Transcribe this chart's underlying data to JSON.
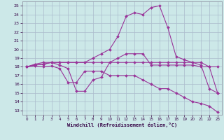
{
  "background_color": "#cce8e8",
  "grid_color": "#aabbcc",
  "line_color": "#993399",
  "markersize": 2.0,
  "linewidth": 0.8,
  "xlim": [
    -0.5,
    23.5
  ],
  "ylim": [
    12.5,
    25.5
  ],
  "yticks": [
    13,
    14,
    15,
    16,
    17,
    18,
    19,
    20,
    21,
    22,
    23,
    24,
    25
  ],
  "xticks": [
    0,
    1,
    2,
    3,
    4,
    5,
    6,
    7,
    8,
    9,
    10,
    11,
    12,
    13,
    14,
    15,
    16,
    17,
    18,
    19,
    20,
    21,
    22,
    23
  ],
  "xlabel": "Windchill (Refroidissement éolien,°C)",
  "curves": [
    {
      "x": [
        0,
        1,
        2,
        3,
        4,
        5,
        6,
        7,
        8,
        9,
        10,
        11,
        12,
        13,
        14,
        15,
        16,
        17,
        18,
        19,
        20,
        21,
        22,
        23
      ],
      "y": [
        18.0,
        18.1,
        18.0,
        18.1,
        17.8,
        16.2,
        16.2,
        17.5,
        17.5,
        17.5,
        17.0,
        17.0,
        17.0,
        17.0,
        16.5,
        16.0,
        15.5,
        15.5,
        15.0,
        14.5,
        14.0,
        13.8,
        13.5,
        12.8
      ]
    },
    {
      "x": [
        0,
        1,
        2,
        3,
        4,
        5,
        6,
        7,
        8,
        9,
        10,
        11,
        12,
        13,
        14,
        15,
        16,
        17,
        18,
        19,
        20,
        21,
        22,
        23
      ],
      "y": [
        18.0,
        18.2,
        18.3,
        18.5,
        18.2,
        17.8,
        15.2,
        15.2,
        16.5,
        16.8,
        18.5,
        19.0,
        19.5,
        19.5,
        19.5,
        18.2,
        18.2,
        18.2,
        18.2,
        18.2,
        18.2,
        18.0,
        18.0,
        15.0
      ]
    },
    {
      "x": [
        0,
        1,
        2,
        3,
        4,
        5,
        6,
        7,
        8,
        9,
        10,
        11,
        12,
        13,
        14,
        15,
        16,
        17,
        18,
        19,
        20,
        21,
        22,
        23
      ],
      "y": [
        18.0,
        18.3,
        18.5,
        18.5,
        18.5,
        18.5,
        18.5,
        18.5,
        18.5,
        18.5,
        18.5,
        18.5,
        18.5,
        18.5,
        18.5,
        18.5,
        18.5,
        18.5,
        18.5,
        18.5,
        18.5,
        18.5,
        18.0,
        18.0
      ]
    },
    {
      "x": [
        0,
        1,
        2,
        3,
        4,
        5,
        6,
        7,
        8,
        9,
        10,
        11,
        12,
        13,
        14,
        15,
        16,
        17,
        18,
        19,
        20,
        21,
        22,
        23
      ],
      "y": [
        18.0,
        18.2,
        18.3,
        18.5,
        18.5,
        18.5,
        18.5,
        18.5,
        19.0,
        19.5,
        20.0,
        21.5,
        23.8,
        24.2,
        24.0,
        24.8,
        25.0,
        22.5,
        19.2,
        18.8,
        18.5,
        18.2,
        15.5,
        15.0
      ]
    }
  ]
}
